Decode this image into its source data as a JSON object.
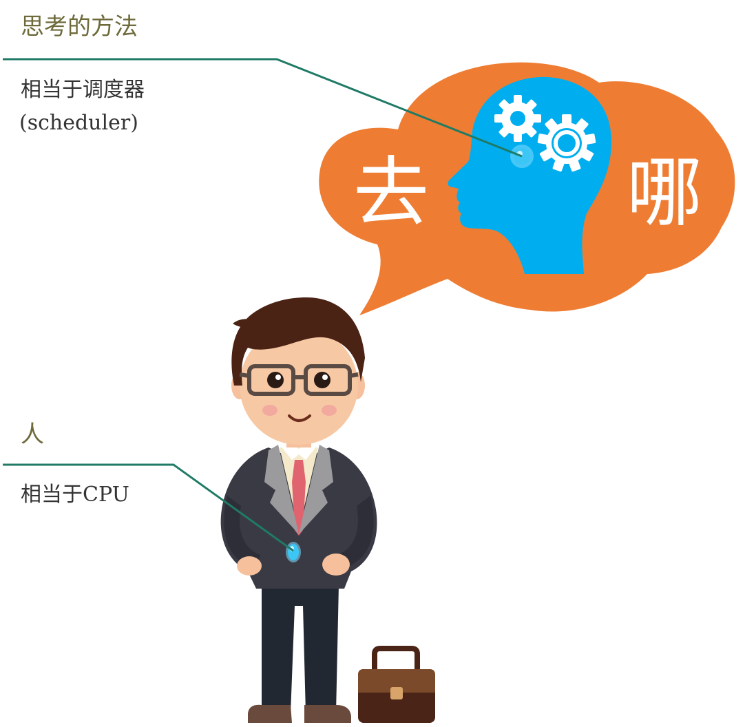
{
  "annotations": {
    "thinking": {
      "title": "思考的方法",
      "line1": "相当于调度器",
      "line2": "(scheduler)"
    },
    "person": {
      "title": "人",
      "line1": "相当于CPU"
    }
  },
  "bubble": {
    "left_char": "去",
    "right_char": "哪"
  },
  "colors": {
    "bubble": "#ee7d33",
    "head": "#00aeef",
    "leader_line": "#1f7a66",
    "heading_text": "#6e6a3a"
  }
}
